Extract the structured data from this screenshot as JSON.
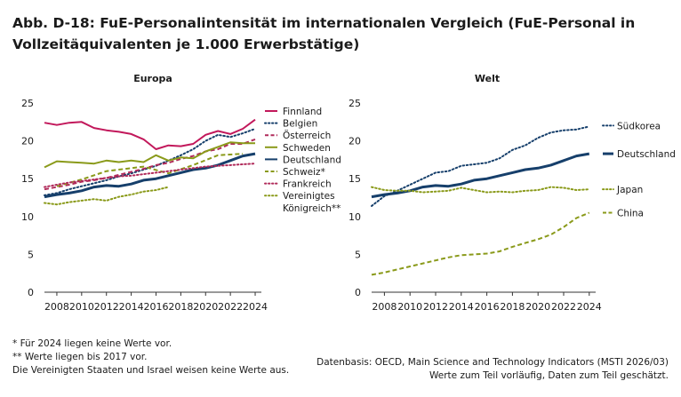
{
  "title": "Abb. D-18: FuE-Personalintensität im internationalen Vergleich (FuE-Personal in Vollzeitäquivalenten je 1.000 Erwerbstätige)",
  "chart_data": [
    {
      "type": "line",
      "title": "Europa",
      "x_ticks": [
        2008,
        2010,
        2012,
        2014,
        2016,
        2018,
        2020,
        2022,
        2024
      ],
      "y_ticks": [
        0,
        5,
        10,
        15,
        20,
        25
      ],
      "ylim": [
        0,
        25
      ],
      "xlim": [
        2007,
        2024.5
      ],
      "grid": false,
      "legend": "right",
      "series": [
        {
          "name": "Finnland",
          "color": "#c2185b",
          "style": "solid",
          "x": [
            2007,
            2008,
            2009,
            2010,
            2011,
            2012,
            2013,
            2014,
            2015,
            2016,
            2017,
            2018,
            2019,
            2020,
            2021,
            2022,
            2023,
            2024
          ],
          "y": [
            22.4,
            22.1,
            22.4,
            22.5,
            21.7,
            21.4,
            21.2,
            20.9,
            20.2,
            18.9,
            19.4,
            19.3,
            19.6,
            20.8,
            21.3,
            20.9,
            21.6,
            22.8
          ]
        },
        {
          "name": "Belgien",
          "color": "#163f6b",
          "style": "dotted",
          "x": [
            2007,
            2008,
            2009,
            2010,
            2011,
            2012,
            2013,
            2014,
            2015,
            2016,
            2017,
            2018,
            2019,
            2020,
            2021,
            2022,
            2023,
            2024
          ],
          "y": [
            12.8,
            13.1,
            13.6,
            14.0,
            14.4,
            14.8,
            15.3,
            15.7,
            16.2,
            16.7,
            17.4,
            18.1,
            18.9,
            20.0,
            20.8,
            20.5,
            21.0,
            21.6
          ]
        },
        {
          "name": "Österreich",
          "color": "#b02a5a",
          "style": "dashed",
          "x": [
            2007,
            2008,
            2009,
            2010,
            2011,
            2012,
            2013,
            2014,
            2015,
            2016,
            2017,
            2018,
            2019,
            2020,
            2021,
            2022,
            2023,
            2024
          ],
          "y": [
            13.6,
            13.9,
            14.2,
            14.6,
            14.8,
            15.1,
            15.5,
            15.9,
            16.3,
            16.8,
            17.1,
            17.6,
            18.0,
            18.6,
            18.9,
            19.6,
            19.6,
            20.2
          ]
        },
        {
          "name": "Schweden",
          "color": "#8a9a1a",
          "style": "solid",
          "x": [
            2007,
            2008,
            2009,
            2010,
            2011,
            2012,
            2013,
            2014,
            2015,
            2016,
            2017,
            2018,
            2019,
            2020,
            2021,
            2022,
            2023,
            2024
          ],
          "y": [
            16.5,
            17.3,
            17.2,
            17.1,
            17.0,
            17.4,
            17.2,
            17.4,
            17.2,
            18.1,
            17.4,
            17.8,
            17.7,
            18.6,
            19.2,
            19.8,
            19.7,
            19.7
          ]
        },
        {
          "name": "Deutschland",
          "color": "#163f6b",
          "style": "solid",
          "x": [
            2007,
            2008,
            2009,
            2010,
            2011,
            2012,
            2013,
            2014,
            2015,
            2016,
            2017,
            2018,
            2019,
            2020,
            2021,
            2022,
            2023,
            2024
          ],
          "y": [
            12.6,
            12.9,
            13.1,
            13.4,
            13.9,
            14.1,
            14.0,
            14.3,
            14.8,
            15.0,
            15.4,
            15.8,
            16.2,
            16.4,
            16.8,
            17.4,
            18.0,
            18.3
          ]
        },
        {
          "name": "Schweiz*",
          "color": "#8a9a1a",
          "style": "dashed",
          "x": [
            2008,
            2010,
            2012,
            2015,
            2017,
            2019,
            2021,
            2023
          ],
          "y": [
            14.0,
            14.9,
            16.0,
            16.6,
            15.7,
            16.8,
            18.1,
            18.3
          ]
        },
        {
          "name": "Frankreich",
          "color": "#b02a5a",
          "style": "dotted",
          "x": [
            2007,
            2008,
            2009,
            2010,
            2011,
            2012,
            2013,
            2014,
            2015,
            2016,
            2017,
            2018,
            2019,
            2020,
            2021,
            2022,
            2023,
            2024
          ],
          "y": [
            13.9,
            14.2,
            14.5,
            14.7,
            14.9,
            15.1,
            15.3,
            15.4,
            15.6,
            15.8,
            16.0,
            16.2,
            16.4,
            16.6,
            16.7,
            16.8,
            16.9,
            17.0
          ]
        },
        {
          "name": "Vereinigtes Königreich**",
          "color": "#8a9a1a",
          "style": "dotted",
          "x": [
            2007,
            2008,
            2009,
            2010,
            2011,
            2012,
            2013,
            2014,
            2015,
            2016,
            2017
          ],
          "y": [
            11.8,
            11.6,
            11.9,
            12.1,
            12.3,
            12.1,
            12.6,
            12.9,
            13.3,
            13.5,
            13.9
          ]
        }
      ],
      "legend_entries": [
        {
          "label": "Finnland",
          "color": "#c2185b",
          "style": "solid"
        },
        {
          "label": "Belgien",
          "color": "#163f6b",
          "style": "dotted"
        },
        {
          "label": "Österreich",
          "color": "#b02a5a",
          "style": "dashed"
        },
        {
          "label": "Schweden",
          "color": "#8a9a1a",
          "style": "solid"
        },
        {
          "label": "Deutschland",
          "color": "#163f6b",
          "style": "solid"
        },
        {
          "label": "Schweiz*",
          "color": "#8a9a1a",
          "style": "dashed"
        },
        {
          "label": "Frankreich",
          "color": "#b02a5a",
          "style": "dotted"
        },
        {
          "label": "Vereinigtes",
          "color": "#8a9a1a",
          "style": "dotted"
        },
        {
          "label": "Königreich**",
          "color": "",
          "style": "none"
        }
      ]
    },
    {
      "type": "line",
      "title": "Welt",
      "x_ticks": [
        2008,
        2010,
        2012,
        2014,
        2016,
        2018,
        2020,
        2022,
        2024
      ],
      "y_ticks": [
        0,
        5,
        10,
        15,
        20,
        25
      ],
      "ylim": [
        0,
        25
      ],
      "xlim": [
        2007,
        2024.5
      ],
      "grid": false,
      "legend": "right",
      "series": [
        {
          "name": "Südkorea",
          "color": "#163f6b",
          "style": "dotted",
          "x": [
            2007,
            2008,
            2009,
            2010,
            2011,
            2012,
            2013,
            2014,
            2015,
            2016,
            2017,
            2018,
            2019,
            2020,
            2021,
            2022,
            2023,
            2024
          ],
          "y": [
            11.4,
            12.7,
            13.4,
            14.2,
            15.0,
            15.8,
            16.0,
            16.7,
            16.9,
            17.1,
            17.7,
            18.8,
            19.4,
            20.4,
            21.1,
            21.4,
            21.5,
            21.9
          ]
        },
        {
          "name": "Deutschland",
          "color": "#163f6b",
          "style": "solid",
          "x": [
            2007,
            2008,
            2009,
            2010,
            2011,
            2012,
            2013,
            2014,
            2015,
            2016,
            2017,
            2018,
            2019,
            2020,
            2021,
            2022,
            2023,
            2024
          ],
          "y": [
            12.6,
            12.9,
            13.1,
            13.4,
            13.9,
            14.1,
            14.0,
            14.3,
            14.8,
            15.0,
            15.4,
            15.8,
            16.2,
            16.4,
            16.8,
            17.4,
            18.0,
            18.3
          ]
        },
        {
          "name": "Japan",
          "color": "#8a9a1a",
          "style": "dotted",
          "x": [
            2007,
            2008,
            2009,
            2010,
            2011,
            2012,
            2013,
            2014,
            2015,
            2016,
            2017,
            2018,
            2019,
            2020,
            2021,
            2022,
            2023,
            2024
          ],
          "y": [
            13.9,
            13.5,
            13.4,
            13.4,
            13.2,
            13.3,
            13.4,
            13.8,
            13.5,
            13.2,
            13.3,
            13.2,
            13.4,
            13.5,
            13.9,
            13.8,
            13.5,
            13.6
          ]
        },
        {
          "name": "China",
          "color": "#8a9a1a",
          "style": "dashed",
          "x": [
            2007,
            2008,
            2009,
            2010,
            2011,
            2012,
            2013,
            2014,
            2015,
            2016,
            2017,
            2018,
            2019,
            2020,
            2021,
            2022,
            2023,
            2024
          ],
          "y": [
            2.3,
            2.6,
            3.0,
            3.4,
            3.8,
            4.2,
            4.6,
            4.9,
            5.0,
            5.1,
            5.4,
            6.0,
            6.5,
            7.0,
            7.6,
            8.6,
            9.8,
            10.5
          ]
        }
      ],
      "legend_entries": [
        {
          "label": "Südkorea",
          "color": "#163f6b",
          "style": "dotted",
          "value": 21.9
        },
        {
          "label": "Deutschland",
          "color": "#163f6b",
          "style": "solid",
          "value": 18.3
        },
        {
          "label": "Japan",
          "color": "#8a9a1a",
          "style": "dotted",
          "value": 13.6
        },
        {
          "label": "China",
          "color": "#8a9a1a",
          "style": "dashed",
          "value": 10.5
        }
      ]
    }
  ],
  "footnotes": {
    "left": [
      "*   Für 2024 liegen keine Werte vor.",
      "**  Werte liegen bis 2017 vor.",
      "Die Vereinigten Staaten und Israel weisen keine Werte aus."
    ],
    "right": [
      "Datenbasis: OECD, Main Science and Technology Indicators (MSTI 2026/03)",
      "Werte zum Teil vorläufig, Daten zum Teil geschätzt."
    ]
  }
}
